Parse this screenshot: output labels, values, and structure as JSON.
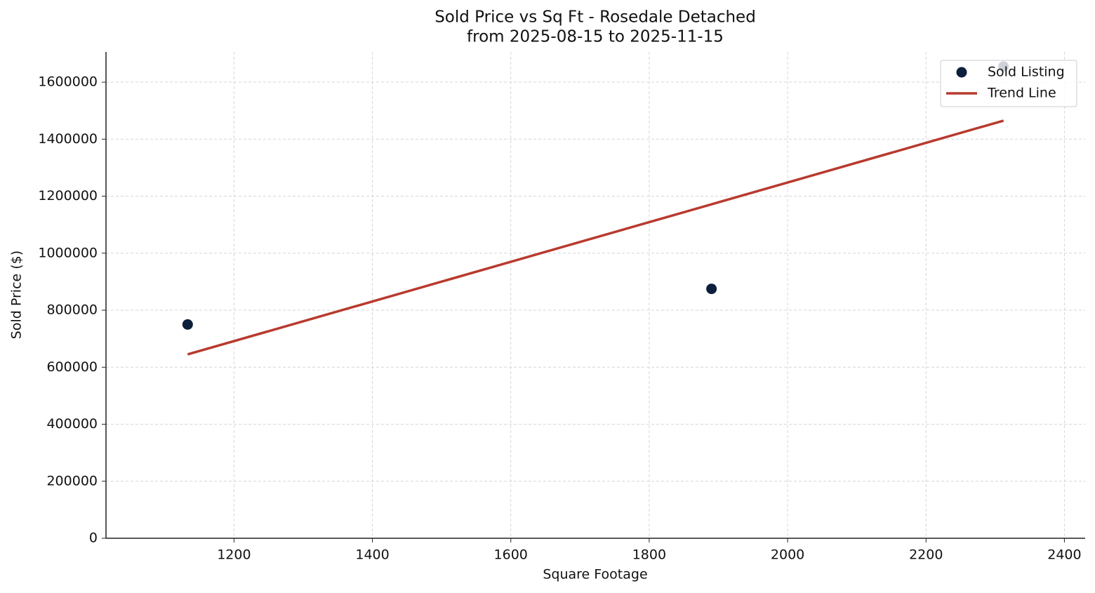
{
  "chart_data": {
    "type": "scatter",
    "title": "Sold Price vs Sq Ft - Rosedale Detached",
    "subtitle": "from 2025-08-15 to 2025-11-15",
    "x_label": "Square Footage",
    "y_label": "Sold Price ($)",
    "series": [
      {
        "name": "Sold Listing",
        "type": "scatter",
        "color": "#0d1f3c",
        "x": [
          1133,
          1890,
          2312
        ],
        "values": [
          750000,
          875000,
          1655000
        ]
      },
      {
        "name": "Trend Line",
        "type": "line",
        "color": "#b83a2e",
        "x": [
          1133,
          2312
        ],
        "values": [
          645000,
          1465000
        ]
      }
    ],
    "xlim": [
      1015,
      2430
    ],
    "ylim": [
      0,
      1706000
    ],
    "xticks": [
      1200,
      1400,
      1600,
      1800,
      2000,
      2200,
      2400
    ],
    "yticks": [
      0,
      200000,
      400000,
      600000,
      800000,
      1000000,
      1200000,
      1400000,
      1600000
    ],
    "grid": true,
    "legend": "upper right"
  }
}
